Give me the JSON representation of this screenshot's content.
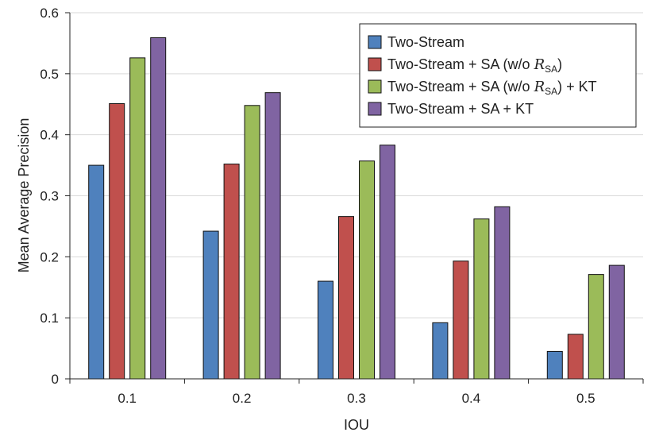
{
  "chart_data": {
    "type": "bar",
    "title": "",
    "xlabel": "IOU",
    "ylabel": "Mean Average Precision",
    "ylim": [
      0,
      0.6
    ],
    "yticks": [
      "0",
      "0.1",
      "0.2",
      "0.3",
      "0.4",
      "0.5",
      "0.6"
    ],
    "grid": true,
    "legend_position": "top-right",
    "categories": [
      "0.1",
      "0.2",
      "0.3",
      "0.4",
      "0.5"
    ],
    "series": [
      {
        "name": "Two-Stream",
        "legend": {
          "pre": "Two-Stream",
          "script": "",
          "sub": "",
          "post": ""
        },
        "color": "#4f81bd",
        "values": [
          0.35,
          0.242,
          0.16,
          0.092,
          0.045
        ]
      },
      {
        "name": "Two-Stream + SA (w/o R_SA)",
        "legend": {
          "pre": "Two-Stream + SA (w/o ",
          "script": "R",
          "sub": "SA",
          "post": ")"
        },
        "color": "#c0504d",
        "values": [
          0.451,
          0.352,
          0.266,
          0.193,
          0.073
        ]
      },
      {
        "name": "Two-Stream + SA (w/o R_SA) + KT",
        "legend": {
          "pre": "Two-Stream + SA (w/o ",
          "script": "R",
          "sub": "SA",
          "post": ") + KT"
        },
        "color": "#9bbb59",
        "values": [
          0.526,
          0.448,
          0.357,
          0.262,
          0.171
        ]
      },
      {
        "name": "Two-Stream + SA + KT",
        "legend": {
          "pre": "Two-Stream + SA + KT",
          "script": "",
          "sub": "",
          "post": ""
        },
        "color": "#8064a2",
        "values": [
          0.559,
          0.469,
          0.383,
          0.282,
          0.186
        ]
      }
    ]
  }
}
